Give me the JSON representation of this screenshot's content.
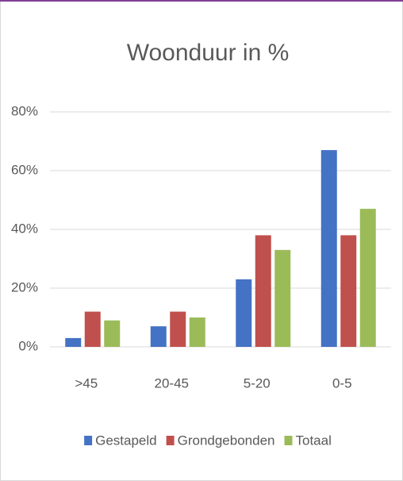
{
  "chart_data": {
    "type": "bar",
    "title": "Woonduur in %",
    "categories": [
      ">45",
      "20-45",
      "5-20",
      "0-5"
    ],
    "series": [
      {
        "name": "Gestapeld",
        "color": "#4472c4",
        "values": [
          3,
          7,
          23,
          67
        ]
      },
      {
        "name": "Grondgebonden",
        "color": "#c0504d",
        "values": [
          12,
          12,
          38,
          38
        ]
      },
      {
        "name": "Totaal",
        "color": "#9bbb59",
        "values": [
          9,
          10,
          33,
          47
        ]
      }
    ],
    "ylim": [
      0,
      80
    ],
    "yticks": [
      {
        "value": 0,
        "label": "0%"
      },
      {
        "value": 20,
        "label": "20%"
      },
      {
        "value": 40,
        "label": "40%"
      },
      {
        "value": 60,
        "label": "60%"
      },
      {
        "value": 80,
        "label": "80%"
      }
    ],
    "grid": true,
    "legend": "bottom"
  }
}
